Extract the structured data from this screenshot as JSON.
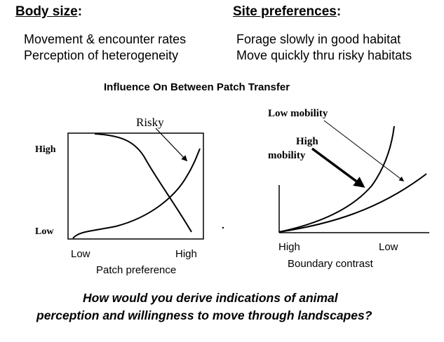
{
  "left_block": {
    "heading": "Body size",
    "heading_suffix": ":",
    "items": [
      "Movement & encounter rates",
      "Perception of heterogeneity"
    ]
  },
  "right_block": {
    "heading": "Site preferences",
    "heading_suffix": ":",
    "items": [
      "Forage slowly in good habitat",
      "Move quickly thru risky habitats"
    ]
  },
  "subtitle": "Influence On Between  Patch Transfer",
  "left_plot": {
    "y_high": "High",
    "y_low": "Low",
    "x_low": "Low",
    "x_high": "High",
    "x_label": "Patch preference",
    "annotation": "Risky"
  },
  "right_plot": {
    "annotation_low": "Low mobility",
    "annotation_high_line1": "High",
    "annotation_high_line2": "mobility",
    "x_left": "High",
    "x_right": "Low",
    "x_label": "Boundary contrast"
  },
  "question": {
    "line1": "How would you derive indications of animal",
    "line2": "perception and willingness to move through landscapes?"
  }
}
